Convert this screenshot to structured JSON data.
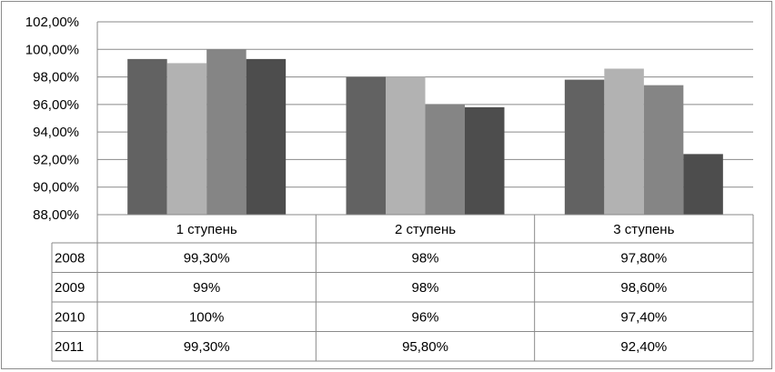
{
  "chart_data": {
    "type": "bar",
    "categories": [
      "1 ступень",
      "2 ступень",
      "3 ступень"
    ],
    "series": [
      {
        "name": "2008",
        "values": [
          99.3,
          98.0,
          97.8
        ],
        "labels": [
          "99,30%",
          "98%",
          "97,80%"
        ],
        "color": "#626262"
      },
      {
        "name": "2009",
        "values": [
          99.0,
          98.0,
          98.6
        ],
        "labels": [
          "99%",
          "98%",
          "98,60%"
        ],
        "color": "#b2b2b2"
      },
      {
        "name": "2010",
        "values": [
          100.0,
          96.0,
          97.4
        ],
        "labels": [
          "100%",
          "96%",
          "97,40%"
        ],
        "color": "#858585"
      },
      {
        "name": "2011",
        "values": [
          99.3,
          95.8,
          92.4
        ],
        "labels": [
          "99,30%",
          "95,80%",
          "92,40%"
        ],
        "color": "#4d4d4d"
      }
    ],
    "yticks": [
      "88,00%",
      "90,00%",
      "92,00%",
      "94,00%",
      "96,00%",
      "98,00%",
      "100,00%",
      "102,00%"
    ],
    "ylim": [
      88,
      102
    ],
    "grid": true,
    "legend": "data table below chart"
  }
}
